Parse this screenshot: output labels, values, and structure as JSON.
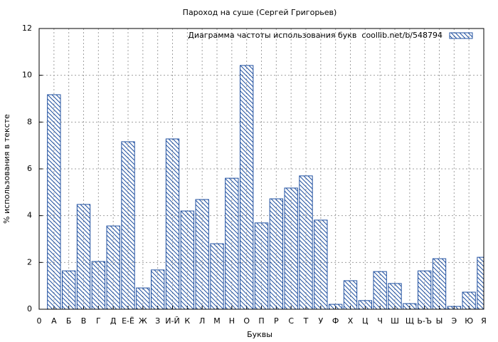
{
  "chart_data": {
    "type": "bar",
    "title": "Пароход на суше (Сергей Григорьев)",
    "xlabel": "Буквы",
    "ylabel": "% использования в тексте",
    "xlim": [
      0,
      30
    ],
    "xticks": [
      0,
      {
        "value": 1,
        "label": "А"
      },
      {
        "value": 2,
        "label": "Б"
      },
      {
        "value": 3,
        "label": "В"
      },
      {
        "value": 4,
        "label": "Г"
      },
      {
        "value": 5,
        "label": "Д"
      },
      {
        "value": 6,
        "label": "Е-Ё"
      },
      {
        "value": 7,
        "label": "Ж"
      },
      {
        "value": 8,
        "label": "З"
      },
      {
        "value": 9,
        "label": "И-Й"
      },
      {
        "value": 10,
        "label": "К"
      },
      {
        "value": 11,
        "label": "Л"
      },
      {
        "value": 12,
        "label": "М"
      },
      {
        "value": 13,
        "label": "Н"
      },
      {
        "value": 14,
        "label": "О"
      },
      {
        "value": 15,
        "label": "П"
      },
      {
        "value": 16,
        "label": "Р"
      },
      {
        "value": 17,
        "label": "С"
      },
      {
        "value": 18,
        "label": "Т"
      },
      {
        "value": 19,
        "label": "У"
      },
      {
        "value": 20,
        "label": "Ф"
      },
      {
        "value": 21,
        "label": "Х"
      },
      {
        "value": 22,
        "label": "Ц"
      },
      {
        "value": 23,
        "label": "Ч"
      },
      {
        "value": 24,
        "label": "Ш"
      },
      {
        "value": 25,
        "label": "Щ"
      },
      {
        "value": 26,
        "label": "Ь-Ъ"
      },
      {
        "value": 27,
        "label": "Ы"
      },
      {
        "value": 28,
        "label": "Э"
      },
      {
        "value": 29,
        "label": "Ю"
      },
      {
        "value": 30,
        "label": "Я"
      }
    ],
    "ylim": [
      0,
      12
    ],
    "yticks": [
      0,
      2,
      4,
      6,
      8,
      10,
      12
    ],
    "grid": true,
    "legend_position": "top-right",
    "series": [
      {
        "name": "Диаграмма частоты использования букв  coollib.net/b/548794",
        "color": "#2050a0",
        "x": [
          1,
          2,
          3,
          4,
          5,
          6,
          7,
          8,
          9,
          10,
          11,
          12,
          13,
          14,
          15,
          16,
          17,
          18,
          19,
          20,
          21,
          22,
          23,
          24,
          25,
          26,
          27,
          28,
          29,
          30
        ],
        "values": [
          9.17,
          1.64,
          4.48,
          2.04,
          3.56,
          7.16,
          0.91,
          1.68,
          7.28,
          4.2,
          4.69,
          2.8,
          5.6,
          10.42,
          3.69,
          4.72,
          5.18,
          5.7,
          3.81,
          0.21,
          1.22,
          0.37,
          1.61,
          1.1,
          0.24,
          1.64,
          2.16,
          0.12,
          0.73,
          2.22
        ]
      }
    ]
  }
}
